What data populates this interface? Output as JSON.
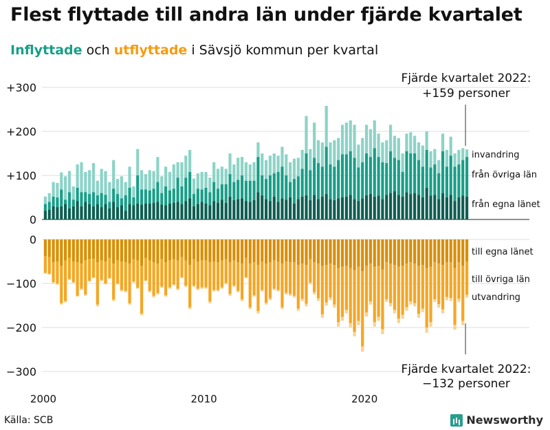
{
  "title": "Flest flyttade till andra län under fjärde kvartalet",
  "subtitle": {
    "in_label": "Inflyttade",
    "mid": " och ",
    "out_label": "utflyttade",
    "rest": " i Sävsjö kommun per kvartal"
  },
  "source": "Källa: SCB",
  "brand": "Newsworthy",
  "colors": {
    "in_dark": "#0e5e52",
    "in_mid": "#1a9e88",
    "in_light": "#8dd3c7",
    "out_dark": "#d98e04",
    "out_mid": "#f5a623",
    "out_light": "#f8d290",
    "grid": "#dddddd",
    "text": "#111111"
  },
  "chart_data": {
    "type": "bar",
    "stacked": true,
    "diverging": true,
    "x_ticks": [
      "2000",
      "2010",
      "2020"
    ],
    "y_ticks_in": [
      "+300",
      "+200",
      "+100",
      "0"
    ],
    "y_ticks_out": [
      "0",
      "−100",
      "−200",
      "−300"
    ],
    "ylim_in": [
      0,
      300
    ],
    "ylim_out": [
      -300,
      0
    ],
    "series_labels": {
      "in_egna": "från egna länet",
      "in_ovriga": "från övriga län",
      "invandring": "invandring",
      "out_egna": "till egna länet",
      "out_ovriga": "till övriga län",
      "utvandring": "utvandring"
    },
    "annotation_top": [
      "Fjärde kvartalet 2022:",
      "+159 personer"
    ],
    "annotation_bottom": [
      "Fjärde kvartalet 2022:",
      "−132 personer"
    ],
    "inflow_total": [
      52,
      60,
      85,
      83,
      107,
      98,
      110,
      75,
      125,
      130,
      108,
      112,
      128,
      88,
      115,
      110,
      85,
      135,
      92,
      98,
      85,
      120,
      75,
      160,
      112,
      103,
      112,
      110,
      142,
      98,
      120,
      108,
      125,
      130,
      130,
      145,
      158,
      93,
      105,
      108,
      108,
      95,
      130,
      115,
      120,
      115,
      150,
      125,
      140,
      142,
      130,
      125,
      130,
      175,
      150,
      135,
      145,
      150,
      145,
      165,
      148,
      130,
      138,
      140,
      158,
      235,
      160,
      220,
      180,
      175,
      258,
      175,
      180,
      185,
      215,
      220,
      225,
      215,
      170,
      185,
      215,
      205,
      225,
      195,
      175,
      180,
      215,
      190,
      185,
      150,
      195,
      198,
      190,
      175,
      168,
      200,
      155,
      160,
      135,
      195,
      158,
      188,
      150,
      158,
      162,
      159
    ],
    "inflow_egna": [
      20,
      22,
      30,
      28,
      30,
      35,
      25,
      30,
      42,
      30,
      40,
      35,
      30,
      35,
      28,
      35,
      25,
      40,
      28,
      32,
      20,
      35,
      32,
      36,
      34,
      36,
      36,
      38,
      40,
      34,
      32,
      36,
      38,
      40,
      35,
      42,
      48,
      30,
      35,
      40,
      36,
      32,
      42,
      38,
      45,
      38,
      52,
      44,
      46,
      48,
      42,
      40,
      44,
      62,
      55,
      46,
      42,
      52,
      40,
      48,
      45,
      50,
      36,
      46,
      52,
      55,
      44,
      56,
      46,
      52,
      58,
      46,
      44,
      48,
      50,
      52,
      56,
      46,
      42,
      48,
      55,
      58,
      52,
      54,
      46,
      56,
      60,
      64,
      56,
      52,
      62,
      58,
      60,
      56,
      50,
      72,
      54,
      56,
      46,
      60,
      50,
      56,
      42,
      50,
      54,
      52
    ],
    "inflow_ovriga": [
      35,
      40,
      52,
      50,
      68,
      45,
      62,
      45,
      72,
      62,
      62,
      58,
      62,
      55,
      60,
      56,
      40,
      70,
      58,
      48,
      55,
      72,
      50,
      100,
      68,
      68,
      66,
      70,
      85,
      60,
      75,
      66,
      70,
      95,
      75,
      95,
      108,
      58,
      70,
      68,
      72,
      62,
      85,
      70,
      80,
      80,
      103,
      85,
      90,
      100,
      88,
      88,
      88,
      142,
      100,
      92,
      100,
      105,
      108,
      120,
      100,
      85,
      92,
      98,
      115,
      150,
      112,
      140,
      128,
      120,
      165,
      125,
      120,
      135,
      148,
      148,
      155,
      140,
      118,
      130,
      150,
      142,
      162,
      142,
      130,
      128,
      155,
      140,
      135,
      108,
      155,
      150,
      150,
      135,
      120,
      158,
      118,
      125,
      105,
      155,
      120,
      145,
      120,
      125,
      135,
      142
    ],
    "outflow_total": [
      78,
      80,
      100,
      103,
      148,
      143,
      92,
      100,
      130,
      115,
      128,
      96,
      88,
      152,
      95,
      102,
      90,
      140,
      102,
      118,
      120,
      148,
      98,
      112,
      172,
      95,
      120,
      132,
      125,
      110,
      130,
      112,
      105,
      115,
      88,
      108,
      158,
      108,
      115,
      112,
      112,
      145,
      118,
      118,
      112,
      102,
      128,
      108,
      120,
      140,
      88,
      158,
      130,
      168,
      118,
      148,
      138,
      115,
      118,
      158,
      125,
      128,
      132,
      162,
      140,
      152,
      102,
      125,
      140,
      178,
      150,
      138,
      155,
      198,
      185,
      168,
      200,
      220,
      195,
      255,
      175,
      148,
      198,
      185,
      215,
      142,
      152,
      168,
      190,
      180,
      162,
      148,
      152,
      178,
      165,
      212,
      198,
      142,
      155,
      168,
      138,
      140,
      205,
      142,
      195,
      132
    ],
    "outflow_egna": [
      38,
      40,
      52,
      50,
      60,
      48,
      42,
      50,
      52,
      55,
      48,
      45,
      44,
      52,
      48,
      50,
      42,
      55,
      48,
      50,
      52,
      55,
      45,
      48,
      60,
      42,
      48,
      52,
      55,
      45,
      52,
      48,
      45,
      48,
      40,
      48,
      58,
      45,
      50,
      48,
      48,
      52,
      50,
      52,
      48,
      45,
      52,
      48,
      52,
      55,
      42,
      55,
      52,
      58,
      50,
      55,
      52,
      48,
      50,
      55,
      50,
      52,
      52,
      58,
      55,
      58,
      45,
      52,
      55,
      60,
      58,
      55,
      58,
      65,
      62,
      60,
      65,
      70,
      62,
      72,
      60,
      55,
      62,
      60,
      68,
      52,
      55,
      58,
      62,
      60,
      55,
      52,
      55,
      60,
      58,
      65,
      62,
      52,
      55,
      58,
      52,
      52,
      65,
      52,
      60,
      50
    ],
    "outflow_ovriga": [
      76,
      78,
      97,
      100,
      145,
      140,
      90,
      97,
      128,
      112,
      125,
      94,
      86,
      148,
      92,
      100,
      88,
      136,
      100,
      115,
      117,
      145,
      96,
      110,
      168,
      93,
      117,
      128,
      122,
      107,
      127,
      109,
      102,
      112,
      86,
      105,
      154,
      105,
      112,
      109,
      109,
      141,
      115,
      115,
      109,
      99,
      124,
      105,
      117,
      136,
      86,
      154,
      127,
      163,
      115,
      144,
      134,
      112,
      115,
      154,
      121,
      124,
      128,
      157,
      135,
      146,
      98,
      120,
      134,
      170,
      143,
      132,
      148,
      188,
      176,
      160,
      190,
      210,
      185,
      243,
      166,
      141,
      188,
      176,
      204,
      136,
      145,
      160,
      180,
      171,
      154,
      141,
      145,
      169,
      157,
      200,
      188,
      136,
      147,
      159,
      131,
      133,
      194,
      135,
      185,
      126
    ]
  }
}
